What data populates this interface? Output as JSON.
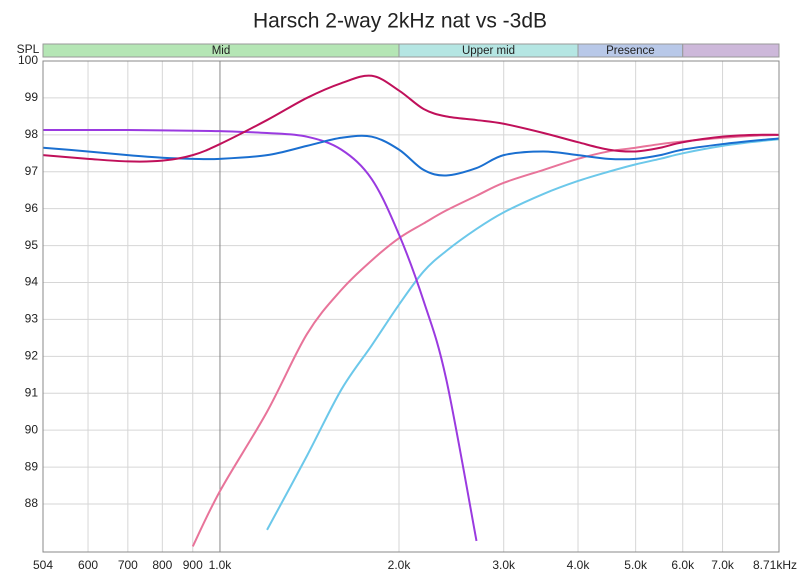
{
  "chart_data": {
    "type": "line",
    "title": "Harsch 2-way 2kHz nat vs -3dB",
    "y_label": "SPL",
    "xscale": "log",
    "grid": true,
    "x": [
      504,
      600,
      700,
      800,
      900,
      1000,
      1200,
      1400,
      1600,
      1800,
      2000,
      2200,
      2400,
      2700,
      3000,
      3500,
      4000,
      4500,
      5000,
      5500,
      6000,
      7000,
      8000,
      8710
    ],
    "xlim": [
      504,
      8710
    ],
    "xticks": [
      504,
      600,
      700,
      800,
      900,
      {
        "value": 1000,
        "label": "1.0k"
      },
      {
        "value": 2000,
        "label": "2.0k"
      },
      {
        "value": 3000,
        "label": "3.0k"
      },
      {
        "value": 4000,
        "label": "4.0k"
      },
      {
        "value": 5000,
        "label": "5.0k"
      },
      {
        "value": 6000,
        "label": "6.0k"
      },
      {
        "value": 7000,
        "label": "7.0k"
      },
      {
        "value": 8710,
        "label": "8.71kHz"
      }
    ],
    "ylim": [
      86.7,
      100
    ],
    "yticks": [
      88,
      89,
      90,
      91,
      92,
      93,
      94,
      95,
      96,
      97,
      98,
      99,
      100
    ],
    "bands": [
      {
        "name": "Mid",
        "from": 504,
        "to": 2000,
        "color": "#b5e6b5"
      },
      {
        "name": "Upper mid",
        "from": 2000,
        "to": 4000,
        "color": "#b5e6e3"
      },
      {
        "name": "Presence",
        "from": 4000,
        "to": 6000,
        "color": "#b8c8e8"
      },
      {
        "from": 6000,
        "to": 8710,
        "color": "#cdb8da"
      }
    ],
    "series": [
      {
        "color": "#6cc8ea",
        "values": [
          null,
          null,
          null,
          null,
          null,
          null,
          87.3,
          89.3,
          91.1,
          92.3,
          93.4,
          94.3,
          94.85,
          95.45,
          95.9,
          96.4,
          96.75,
          97.0,
          97.2,
          97.35,
          97.5,
          97.7,
          97.82,
          97.88
        ]
      },
      {
        "color": "#e8749a",
        "values": [
          null,
          null,
          null,
          null,
          86.85,
          88.35,
          90.5,
          92.6,
          93.8,
          94.6,
          95.2,
          95.6,
          95.95,
          96.35,
          96.7,
          97.05,
          97.35,
          97.55,
          97.65,
          97.75,
          97.82,
          97.92,
          97.98,
          98.0
        ]
      },
      {
        "color": "#9a3ae0",
        "values": [
          98.13,
          98.13,
          98.13,
          98.12,
          98.11,
          98.1,
          98.05,
          97.95,
          97.6,
          96.8,
          95.3,
          93.5,
          91.4,
          87.0,
          null,
          null,
          null,
          null,
          null,
          null,
          null,
          null,
          null,
          null
        ]
      },
      {
        "color": "#1a6fd0",
        "values": [
          97.65,
          97.55,
          97.45,
          97.38,
          97.35,
          97.35,
          97.45,
          97.7,
          97.92,
          97.95,
          97.6,
          97.05,
          96.9,
          97.1,
          97.45,
          97.55,
          97.45,
          97.35,
          97.35,
          97.45,
          97.6,
          97.75,
          97.85,
          97.9
        ]
      },
      {
        "color": "#c0105a",
        "values": [
          97.45,
          97.35,
          97.28,
          97.3,
          97.45,
          97.75,
          98.4,
          99.0,
          99.4,
          99.6,
          99.2,
          98.7,
          98.5,
          98.4,
          98.3,
          98.05,
          97.8,
          97.6,
          97.55,
          97.65,
          97.8,
          97.95,
          98.0,
          98.0
        ]
      }
    ]
  }
}
